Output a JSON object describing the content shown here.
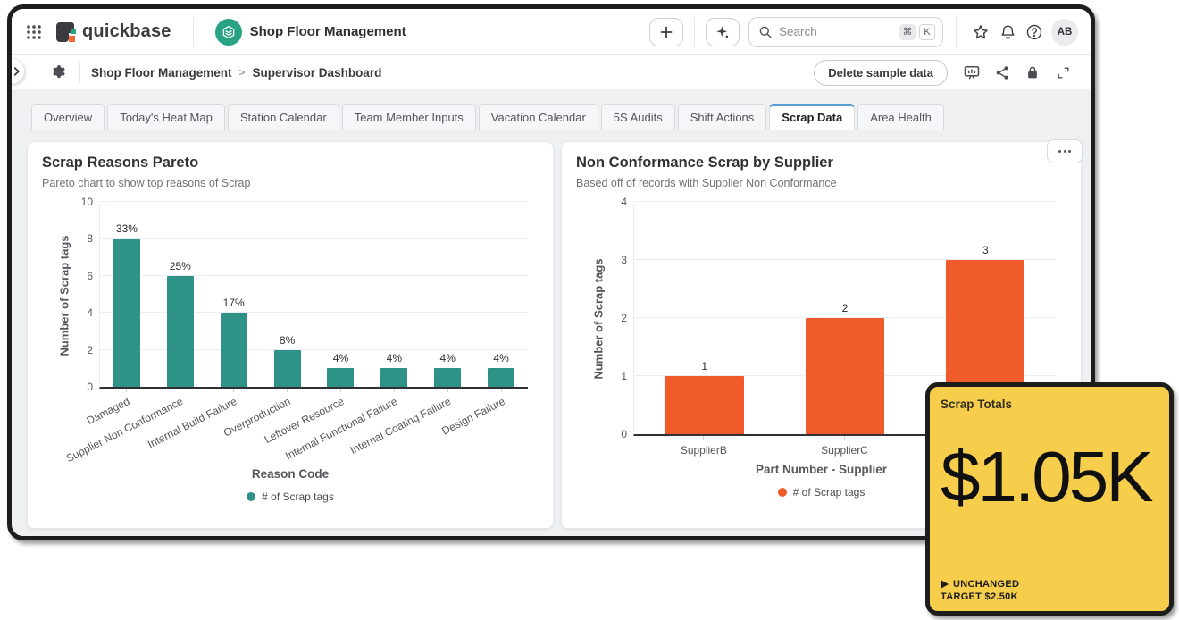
{
  "navbar": {
    "grid_icon": "app-switcher-grid",
    "product_name": "quickbase",
    "app_icon": "green-hexagon-stack",
    "app_name": "Shop Floor Management",
    "new_button_icon": "plus",
    "ai_button_icon": "sparkle",
    "search": {
      "icon": "magnifier",
      "placeholder": "Search",
      "shortcut_mod": "⌘",
      "shortcut_key": "K"
    },
    "action_icons": [
      "favorite-star",
      "notification-bell",
      "help-question"
    ],
    "avatar_initials": "AB"
  },
  "toolbar": {
    "collapse_icon": "chevron-right",
    "settings_icon": "gear",
    "breadcrumb": {
      "app": "Shop Floor Management",
      "separator": ">",
      "page": "Supervisor Dashboard"
    },
    "delete_button_label": "Delete sample data",
    "action_icons": [
      "presentation-screen",
      "share-nodes",
      "lock",
      "fullscreen-expand"
    ]
  },
  "tabs": [
    {
      "label": "Overview",
      "active": false
    },
    {
      "label": "Today's Heat Map",
      "active": false
    },
    {
      "label": "Station Calendar",
      "active": false
    },
    {
      "label": "Team Member Inputs",
      "active": false
    },
    {
      "label": "Vacation Calendar",
      "active": false
    },
    {
      "label": "5S Audits",
      "active": false
    },
    {
      "label": "Shift Actions",
      "active": false
    },
    {
      "label": "Scrap Data",
      "active": true
    },
    {
      "label": "Area Health",
      "active": false
    }
  ],
  "accent": {
    "active_tab_color": "#5b9ecf"
  },
  "chart_data": [
    {
      "type": "bar",
      "title": "Scrap Reasons Pareto",
      "subtitle": "Pareto chart to show top reasons of Scrap",
      "categories": [
        "Damaged",
        "Supplier Non Conformance",
        "Internal Build Failure",
        "Overproduction",
        "Leftover Resource",
        "Internal Functional Failure",
        "Internal Coating Failure",
        "Design Failure"
      ],
      "values": [
        8,
        6,
        4,
        2,
        1,
        1,
        1,
        1
      ],
      "bar_labels": [
        "33%",
        "25%",
        "17%",
        "8%",
        "4%",
        "4%",
        "4%",
        "4%"
      ],
      "xlabel": "Reason Code",
      "ylabel": "Number of Scrap tags",
      "ylim": [
        0,
        10
      ],
      "yticks": [
        0,
        2,
        4,
        6,
        8,
        10
      ],
      "legend": [
        "# of Scrap tags"
      ],
      "legend_position": "bottom",
      "color": "#2e9286",
      "grid": true
    },
    {
      "type": "bar",
      "title": "Non Conformance Scrap by Supplier",
      "subtitle": "Based off of records with Supplier Non Conformance",
      "categories": [
        "SupplierB",
        "SupplierC",
        ""
      ],
      "values": [
        1,
        2,
        3
      ],
      "bar_labels": [
        "1",
        "2",
        "3"
      ],
      "xlabel": "Part Number - Supplier",
      "ylabel": "Number of Scrap tags",
      "ylim": [
        0,
        4
      ],
      "yticks": [
        0,
        1,
        2,
        3,
        4
      ],
      "legend": [
        "# of Scrap tags"
      ],
      "legend_position": "bottom",
      "color": "#f15b2b",
      "grid": true
    }
  ],
  "kpi_card": {
    "title": "Scrap Totals",
    "value": "$1.05K",
    "trend_icon": "play-triangle",
    "trend_label": "UNCHANGED",
    "target_label": "TARGET $2.50K",
    "bg_color": "#f6ce4b"
  }
}
